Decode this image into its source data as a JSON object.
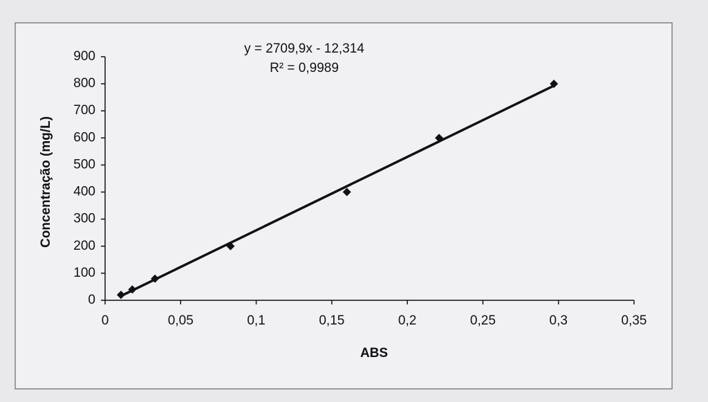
{
  "chart_data": {
    "type": "scatter",
    "x_label": "ABS",
    "y_label": "Concentração (mg/L)",
    "annotations": [
      "y = 2709,9x - 12,314",
      "R² = 0,9989"
    ],
    "x": [
      0.0105,
      0.018,
      0.033,
      0.083,
      0.16,
      0.221,
      0.297
    ],
    "values": [
      20,
      40,
      80,
      200,
      400,
      600,
      800
    ],
    "color": "#111111",
    "trendline": {
      "x": [
        0.0105,
        0.297
      ],
      "values": [
        16,
        793
      ]
    },
    "xlim": [
      0,
      0.35
    ],
    "xticks": [
      0,
      {
        "value": 0.05,
        "label": "0,05"
      },
      {
        "value": 0.1,
        "label": "0,1"
      },
      {
        "value": 0.15,
        "label": "0,15"
      },
      {
        "value": 0.2,
        "label": "0,2"
      },
      {
        "value": 0.25,
        "label": "0,25"
      },
      {
        "value": 0.3,
        "label": "0,3"
      },
      {
        "value": 0.35,
        "label": "0,35"
      }
    ],
    "ylim": [
      0,
      900
    ],
    "yticks": [
      0,
      100,
      200,
      300,
      400,
      500,
      600,
      700,
      800,
      900
    ],
    "grid": false
  }
}
